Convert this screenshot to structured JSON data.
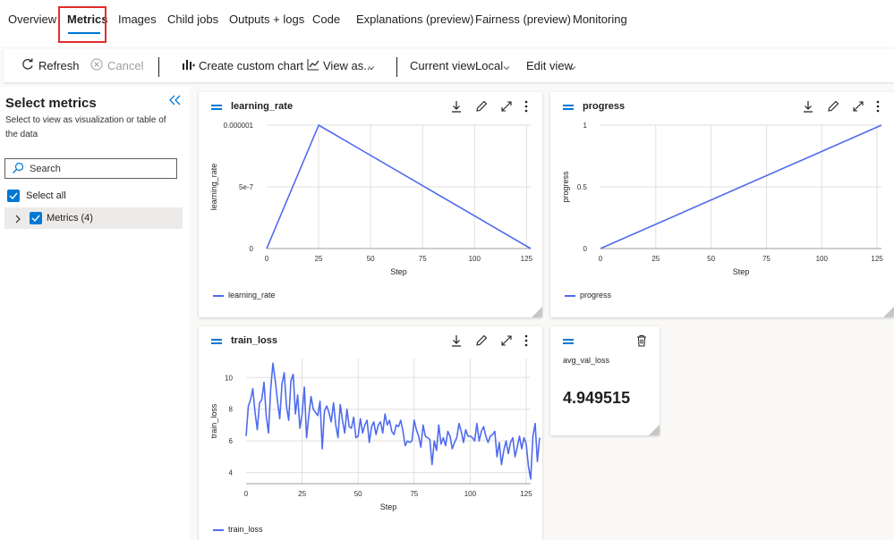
{
  "tabs": [
    {
      "label": "Overview"
    },
    {
      "label": "Metrics",
      "active": true
    },
    {
      "label": "Images"
    },
    {
      "label": "Child jobs"
    },
    {
      "label": "Outputs + logs"
    },
    {
      "label": "Code"
    },
    {
      "label": "Explanations (preview)"
    },
    {
      "label": "Fairness (preview)"
    },
    {
      "label": "Monitoring"
    }
  ],
  "toolbar": {
    "refresh": "Refresh",
    "cancel": "Cancel",
    "create_chart": "Create custom chart",
    "view_as": "View as...",
    "current_view_label": "Current view:",
    "current_view_value": "Local",
    "edit_view": "Edit view"
  },
  "sidebar": {
    "title": "Select metrics",
    "description": "Select to view as visualization or table of the data",
    "search_placeholder": "Search",
    "select_all": "Select all",
    "tree_item": "Metrics (4)"
  },
  "colors": {
    "accent": "#0078d4",
    "series": "#4f6bed",
    "highlight": "#e32d2d"
  },
  "cards": {
    "learning_rate": {
      "title": "learning_rate",
      "legend": "learning_rate"
    },
    "progress": {
      "title": "progress",
      "legend": "progress"
    },
    "train_loss": {
      "title": "train_loss",
      "legend": "train_loss"
    },
    "avg_val_loss": {
      "label": "avg_val_loss",
      "value": "4.949515"
    }
  },
  "chart_data": [
    {
      "type": "line",
      "title": "learning_rate",
      "xlabel": "Step",
      "ylabel": "learning_rate",
      "x": [
        0,
        25,
        127
      ],
      "series": [
        {
          "name": "learning_rate",
          "values": [
            0,
            1e-06,
            0
          ]
        }
      ],
      "xlim": [
        0,
        127
      ],
      "ylim": [
        0,
        1e-06
      ],
      "xticks": [
        0,
        25,
        50,
        75,
        100,
        125
      ],
      "yticks": [
        {
          "v": 0,
          "label": "0"
        },
        {
          "v": 5e-07,
          "label": "5e-7"
        },
        {
          "v": 1e-06,
          "label": "0.000001"
        }
      ],
      "grid": true,
      "legend": "bottom-left"
    },
    {
      "type": "line",
      "title": "progress",
      "xlabel": "Step",
      "ylabel": "progress",
      "x": [
        0,
        127
      ],
      "series": [
        {
          "name": "progress",
          "values": [
            0,
            1
          ]
        }
      ],
      "xlim": [
        0,
        127
      ],
      "ylim": [
        0,
        1
      ],
      "xticks": [
        0,
        25,
        50,
        75,
        100,
        125
      ],
      "yticks": [
        {
          "v": 0,
          "label": "0"
        },
        {
          "v": 0.5,
          "label": "0.5"
        },
        {
          "v": 1,
          "label": "1"
        }
      ],
      "grid": true,
      "legend": "bottom-left"
    },
    {
      "type": "line",
      "title": "train_loss",
      "xlabel": "Step",
      "ylabel": "train_loss",
      "x_start": 0,
      "x_step": 1,
      "series": [
        {
          "name": "train_loss",
          "values": [
            6.3,
            8.2,
            8.6,
            9.3,
            7.8,
            6.7,
            8.4,
            8.6,
            9.7,
            7.6,
            6.5,
            9.3,
            10.9,
            9.8,
            8.5,
            7.4,
            9.6,
            10.3,
            8.2,
            7.3,
            9.8,
            10.2,
            7.7,
            8.9,
            6.8,
            7.7,
            9.4,
            6.2,
            7.6,
            8.8,
            8.0,
            7.8,
            7.6,
            8.5,
            5.5,
            7.9,
            8.2,
            7.8,
            7.2,
            8.4,
            7.0,
            6.2,
            8.3,
            7.3,
            6.5,
            8.0,
            6.9,
            6.8,
            7.5,
            6.2,
            6.3,
            7.4,
            6.5,
            7.0,
            7.3,
            5.9,
            6.9,
            7.2,
            6.4,
            7.0,
            7.2,
            6.5,
            7.7,
            7.0,
            7.3,
            6.6,
            6.4,
            7.0,
            6.9,
            7.3,
            6.6,
            5.7,
            6.0,
            5.9,
            6.0,
            7.3,
            6.7,
            6.3,
            5.6,
            7.0,
            6.3,
            6.2,
            6.1,
            4.5,
            6.0,
            5.4,
            7.0,
            5.8,
            6.2,
            5.7,
            6.6,
            6.3,
            5.5,
            5.9,
            6.2,
            7.1,
            6.6,
            5.9,
            6.7,
            6.3,
            6.3,
            6.2,
            6.0,
            7.1,
            6.0,
            6.6,
            6.9,
            6.3,
            5.9,
            6.3,
            6.4,
            6.6,
            5.0,
            5.9,
            4.5,
            5.4,
            6.0,
            5.2,
            5.9,
            6.2,
            5.0,
            5.6,
            6.3,
            5.5,
            6.2,
            5.8,
            4.4,
            3.6,
            6.3,
            7.1,
            4.7,
            6.2
          ]
        }
      ],
      "xlim": [
        0,
        127
      ],
      "ylim": [
        3.3,
        11.2
      ],
      "xticks": [
        0,
        25,
        50,
        75,
        100,
        125
      ],
      "yticks": [
        {
          "v": 4,
          "label": "4"
        },
        {
          "v": 6,
          "label": "6"
        },
        {
          "v": 8,
          "label": "8"
        },
        {
          "v": 10,
          "label": "10"
        }
      ],
      "grid": true,
      "legend": "bottom-left"
    }
  ]
}
